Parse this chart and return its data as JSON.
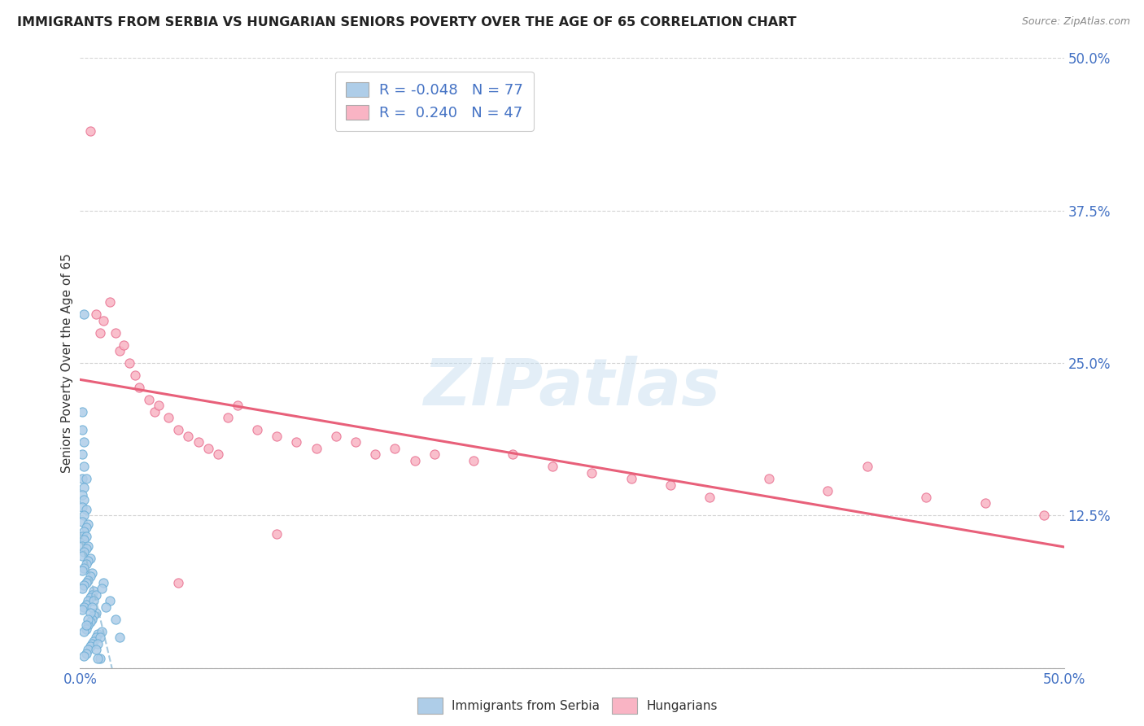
{
  "title": "IMMIGRANTS FROM SERBIA VS HUNGARIAN SENIORS POVERTY OVER THE AGE OF 65 CORRELATION CHART",
  "source": "Source: ZipAtlas.com",
  "ylabel": "Seniors Poverty Over the Age of 65",
  "xlim": [
    0.0,
    0.5
  ],
  "ylim": [
    0.0,
    0.5
  ],
  "yticks_right": [
    0.125,
    0.25,
    0.375,
    0.5
  ],
  "ytick_labels_right": [
    "12.5%",
    "25.0%",
    "37.5%",
    "50.0%"
  ],
  "xtick_positions": [
    0.0,
    0.5
  ],
  "xtick_labels": [
    "0.0%",
    "50.0%"
  ],
  "color_serbia": "#aecde8",
  "color_serbia_edge": "#6baed6",
  "color_hungarian": "#f9b4c4",
  "color_hungarian_edge": "#e87090",
  "trend_serbia_color": "#90bcd8",
  "trend_hungarian_color": "#e8607a",
  "watermark": "ZIPatlas",
  "background_color": "#ffffff",
  "grid_color": "#d0d0d0",
  "label_color": "#4472C4",
  "legend_r1": "-0.048",
  "legend_n1": "77",
  "legend_r2": "0.240",
  "legend_n2": "47",
  "serbia_x": [
    0.001,
    0.001,
    0.002,
    0.001,
    0.002,
    0.001,
    0.003,
    0.002,
    0.001,
    0.002,
    0.001,
    0.003,
    0.002,
    0.001,
    0.004,
    0.003,
    0.002,
    0.001,
    0.003,
    0.002,
    0.001,
    0.004,
    0.003,
    0.002,
    0.001,
    0.005,
    0.004,
    0.003,
    0.002,
    0.001,
    0.006,
    0.005,
    0.004,
    0.003,
    0.002,
    0.001,
    0.007,
    0.006,
    0.005,
    0.004,
    0.003,
    0.002,
    0.001,
    0.008,
    0.007,
    0.006,
    0.005,
    0.004,
    0.003,
    0.002,
    0.009,
    0.008,
    0.007,
    0.006,
    0.005,
    0.004,
    0.003,
    0.002,
    0.01,
    0.009,
    0.008,
    0.007,
    0.006,
    0.005,
    0.004,
    0.003,
    0.011,
    0.01,
    0.009,
    0.008,
    0.012,
    0.011,
    0.015,
    0.013,
    0.018,
    0.02,
    0.002
  ],
  "serbia_y": [
    0.21,
    0.195,
    0.185,
    0.175,
    0.165,
    0.155,
    0.155,
    0.148,
    0.142,
    0.138,
    0.132,
    0.13,
    0.125,
    0.12,
    0.118,
    0.115,
    0.112,
    0.108,
    0.108,
    0.105,
    0.1,
    0.1,
    0.098,
    0.095,
    0.092,
    0.09,
    0.088,
    0.085,
    0.082,
    0.08,
    0.078,
    0.075,
    0.072,
    0.07,
    0.068,
    0.065,
    0.063,
    0.06,
    0.058,
    0.055,
    0.052,
    0.05,
    0.048,
    0.045,
    0.043,
    0.04,
    0.038,
    0.035,
    0.032,
    0.03,
    0.028,
    0.025,
    0.022,
    0.02,
    0.018,
    0.015,
    0.012,
    0.01,
    0.008,
    0.008,
    0.06,
    0.055,
    0.05,
    0.045,
    0.04,
    0.035,
    0.03,
    0.025,
    0.02,
    0.015,
    0.07,
    0.065,
    0.055,
    0.05,
    0.04,
    0.025,
    0.29
  ],
  "hungarian_x": [
    0.005,
    0.008,
    0.01,
    0.012,
    0.015,
    0.018,
    0.02,
    0.022,
    0.025,
    0.028,
    0.03,
    0.035,
    0.038,
    0.04,
    0.045,
    0.05,
    0.055,
    0.06,
    0.065,
    0.07,
    0.075,
    0.08,
    0.09,
    0.1,
    0.11,
    0.12,
    0.13,
    0.14,
    0.15,
    0.16,
    0.17,
    0.18,
    0.2,
    0.22,
    0.24,
    0.26,
    0.28,
    0.3,
    0.32,
    0.35,
    0.38,
    0.4,
    0.43,
    0.46,
    0.49,
    0.05,
    0.1
  ],
  "hungarian_y": [
    0.44,
    0.29,
    0.275,
    0.285,
    0.3,
    0.275,
    0.26,
    0.265,
    0.25,
    0.24,
    0.23,
    0.22,
    0.21,
    0.215,
    0.205,
    0.195,
    0.19,
    0.185,
    0.18,
    0.175,
    0.205,
    0.215,
    0.195,
    0.19,
    0.185,
    0.18,
    0.19,
    0.185,
    0.175,
    0.18,
    0.17,
    0.175,
    0.17,
    0.175,
    0.165,
    0.16,
    0.155,
    0.15,
    0.14,
    0.155,
    0.145,
    0.165,
    0.14,
    0.135,
    0.125,
    0.07,
    0.11
  ]
}
